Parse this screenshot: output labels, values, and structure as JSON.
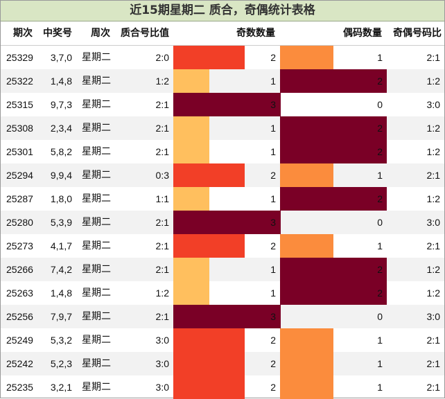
{
  "title": "近15期星期二 质合，奇偶统计表格",
  "columns": [
    "期次",
    "中奖号",
    "周次",
    "质合号比值",
    "奇数数量",
    "偶码数量",
    "奇偶号码比"
  ],
  "colors": {
    "title_bg": "#d9e6c4",
    "level_3": "#7a0026",
    "level_2": "#f23f27",
    "level_1_odd": "#ffbf5e",
    "level_1_even": "#fb8c3d",
    "row_alt": "#f2f2f2"
  },
  "rows": [
    {
      "issue": "25329",
      "numbers": "3,7,0",
      "weekday": "星期二",
      "prime_ratio": "2:0",
      "odd": 2,
      "even": 1,
      "odd_even_ratio": "2:1"
    },
    {
      "issue": "25322",
      "numbers": "1,4,8",
      "weekday": "星期二",
      "prime_ratio": "1:2",
      "odd": 1,
      "even": 2,
      "odd_even_ratio": "1:2"
    },
    {
      "issue": "25315",
      "numbers": "9,7,3",
      "weekday": "星期二",
      "prime_ratio": "2:1",
      "odd": 3,
      "even": 0,
      "odd_even_ratio": "3:0"
    },
    {
      "issue": "25308",
      "numbers": "2,3,4",
      "weekday": "星期二",
      "prime_ratio": "2:1",
      "odd": 1,
      "even": 2,
      "odd_even_ratio": "1:2"
    },
    {
      "issue": "25301",
      "numbers": "5,8,2",
      "weekday": "星期二",
      "prime_ratio": "2:1",
      "odd": 1,
      "even": 2,
      "odd_even_ratio": "1:2"
    },
    {
      "issue": "25294",
      "numbers": "9,9,4",
      "weekday": "星期二",
      "prime_ratio": "0:3",
      "odd": 2,
      "even": 1,
      "odd_even_ratio": "2:1"
    },
    {
      "issue": "25287",
      "numbers": "1,8,0",
      "weekday": "星期二",
      "prime_ratio": "1:1",
      "odd": 1,
      "even": 2,
      "odd_even_ratio": "1:2"
    },
    {
      "issue": "25280",
      "numbers": "5,3,9",
      "weekday": "星期二",
      "prime_ratio": "2:1",
      "odd": 3,
      "even": 0,
      "odd_even_ratio": "3:0"
    },
    {
      "issue": "25273",
      "numbers": "4,1,7",
      "weekday": "星期二",
      "prime_ratio": "2:1",
      "odd": 2,
      "even": 1,
      "odd_even_ratio": "2:1"
    },
    {
      "issue": "25266",
      "numbers": "7,4,2",
      "weekday": "星期二",
      "prime_ratio": "2:1",
      "odd": 1,
      "even": 2,
      "odd_even_ratio": "1:2"
    },
    {
      "issue": "25263",
      "numbers": "1,4,8",
      "weekday": "星期二",
      "prime_ratio": "1:2",
      "odd": 1,
      "even": 2,
      "odd_even_ratio": "1:2"
    },
    {
      "issue": "25256",
      "numbers": "7,9,7",
      "weekday": "星期二",
      "prime_ratio": "2:1",
      "odd": 3,
      "even": 0,
      "odd_even_ratio": "3:0"
    },
    {
      "issue": "25249",
      "numbers": "5,3,2",
      "weekday": "星期二",
      "prime_ratio": "3:0",
      "odd": 2,
      "even": 1,
      "odd_even_ratio": "2:1"
    },
    {
      "issue": "25242",
      "numbers": "5,2,3",
      "weekday": "星期二",
      "prime_ratio": "3:0",
      "odd": 2,
      "even": 1,
      "odd_even_ratio": "2:1"
    },
    {
      "issue": "25235",
      "numbers": "3,2,1",
      "weekday": "星期二",
      "prime_ratio": "3:0",
      "odd": 2,
      "even": 1,
      "odd_even_ratio": "2:1"
    }
  ]
}
